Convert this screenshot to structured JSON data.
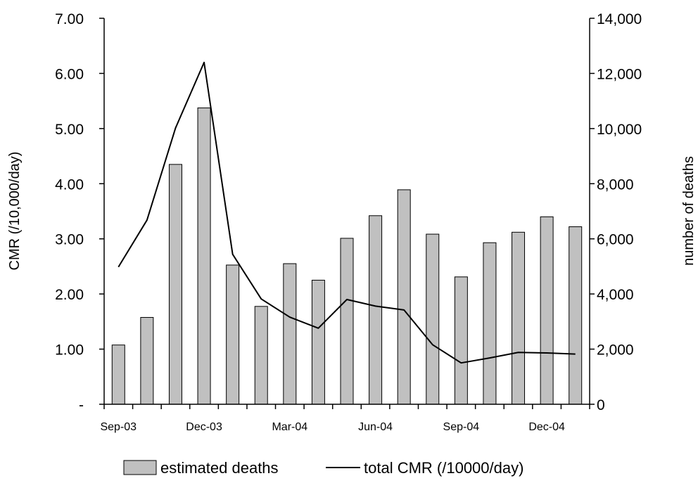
{
  "chart_data": {
    "type": "bar",
    "categories": [
      "Sep-03",
      "Oct-03",
      "Nov-03",
      "Dec-03",
      "Jan-04",
      "Feb-04",
      "Mar-04",
      "Apr-04",
      "May-04",
      "Jun-04",
      "Jul-04",
      "Aug-04",
      "Sep-04",
      "Oct-04",
      "Nov-04",
      "Dec-04",
      "Jan-05"
    ],
    "x_tick_labels": [
      "Sep-03",
      "",
      "",
      "Dec-03",
      "",
      "",
      "Mar-04",
      "",
      "",
      "Jun-04",
      "",
      "",
      "Sep-04",
      "",
      "",
      "Dec-04",
      ""
    ],
    "y_left": {
      "label": "CMR (/10,000/day)",
      "ylim": [
        0,
        7
      ],
      "tick_values": [
        0,
        1,
        2,
        3,
        4,
        5,
        6,
        7
      ],
      "tick_labels": [
        "-",
        "1.00",
        "2.00",
        "3.00",
        "4.00",
        "5.00",
        "6.00",
        "7.00"
      ]
    },
    "y_right": {
      "label": "number of deaths",
      "ylim": [
        0,
        14000
      ],
      "tick_values": [
        0,
        2000,
        4000,
        6000,
        8000,
        10000,
        12000,
        14000
      ],
      "tick_labels": [
        "0",
        "2,000",
        "4,000",
        "6,000",
        "8,000",
        "10,000",
        "12,000",
        "14,000"
      ]
    },
    "series": [
      {
        "name": "estimated deaths",
        "type": "bar",
        "axis": "right",
        "color": "#c0c0c0",
        "values": [
          2150,
          3150,
          8700,
          10750,
          5050,
          3550,
          5100,
          4500,
          6020,
          6840,
          7780,
          6170,
          4620,
          5860,
          6240,
          6800,
          6440
        ]
      },
      {
        "name": "total CMR (/10000/day)",
        "type": "line",
        "axis": "left",
        "color": "#000000",
        "values": [
          4.98,
          6.68,
          10.02,
          12.4,
          5.44,
          3.82,
          3.16,
          2.76,
          3.8,
          3.56,
          3.42,
          2.16,
          1.5,
          1.68,
          1.88,
          1.86,
          1.82
        ]
      }
    ],
    "line_unit_note": "line values read on right axis scale",
    "grid": false,
    "legend": "bottom"
  }
}
